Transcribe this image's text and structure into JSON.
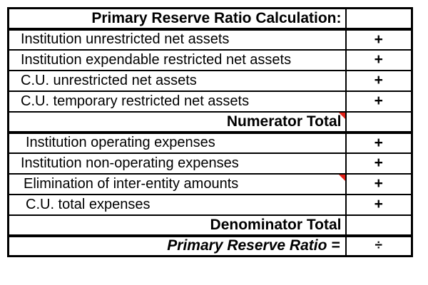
{
  "header": {
    "label": "Primary Reserve Ratio Calculation:",
    "operator": ""
  },
  "rows": [
    {
      "label": "Institution unrestricted net assets",
      "operator": "+",
      "type": "item",
      "indent": 16,
      "marker": false,
      "thick_bottom": false
    },
    {
      "label": "Institution expendable restricted net assets",
      "operator": "+",
      "type": "item",
      "indent": 16,
      "marker": false,
      "thick_bottom": false
    },
    {
      "label": "C.U. unrestricted net assets",
      "operator": "+",
      "type": "item",
      "indent": 16,
      "marker": false,
      "thick_bottom": false
    },
    {
      "label": "C.U. temporary restricted net assets",
      "operator": "+",
      "type": "item",
      "indent": 16,
      "marker": false,
      "thick_bottom": false
    },
    {
      "label": "Numerator Total",
      "operator": "",
      "type": "total",
      "indent": 0,
      "marker": true,
      "thick_bottom": true
    },
    {
      "label": "Institution operating expenses",
      "operator": "+",
      "type": "item",
      "indent": 23,
      "marker": false,
      "thick_bottom": false
    },
    {
      "label": "Institution non-operating expenses",
      "operator": "+",
      "type": "item",
      "indent": 16,
      "marker": false,
      "thick_bottom": false
    },
    {
      "label": "Elimination of inter-entity amounts",
      "operator": "+",
      "type": "item",
      "indent": 20,
      "marker": true,
      "thick_bottom": false
    },
    {
      "label": "C.U. total expenses",
      "operator": "+",
      "type": "item",
      "indent": 23,
      "marker": false,
      "thick_bottom": false
    },
    {
      "label": "Denominator Total",
      "operator": "",
      "type": "total",
      "indent": 0,
      "marker": false,
      "thick_bottom": true
    },
    {
      "label": "Primary Reserve Ratio =",
      "operator": "÷",
      "type": "ratio",
      "indent": 0,
      "marker": false,
      "thick_bottom": false
    }
  ],
  "colors": {
    "border": "#000000",
    "text": "#000000",
    "background": "#ffffff",
    "comment_marker": "#e32219"
  }
}
